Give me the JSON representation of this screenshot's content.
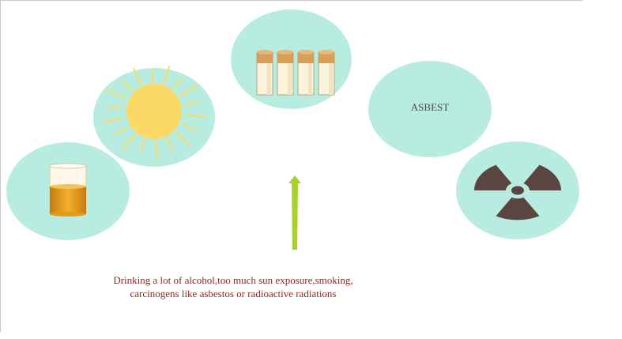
{
  "asbest_label": "ASBEST",
  "caption_line1": "Drinking a lot of alcohol,too much sun exposure,smoking,",
  "caption_line2": "carcinogens like asbestos or radioactive radiations",
  "colors": {
    "oval_fill": "#b9ece0",
    "sun": "#fbd966",
    "arrow": "#a8d22a",
    "caption": "#8a2a22",
    "radiation": "#5a4540",
    "cigarette_filter": "#d89f58",
    "alcohol": "#e39a1c"
  },
  "icons": [
    "alcohol-glass-icon",
    "sun-icon",
    "cigarettes-icon",
    "radiation-icon",
    "up-arrow-icon"
  ]
}
